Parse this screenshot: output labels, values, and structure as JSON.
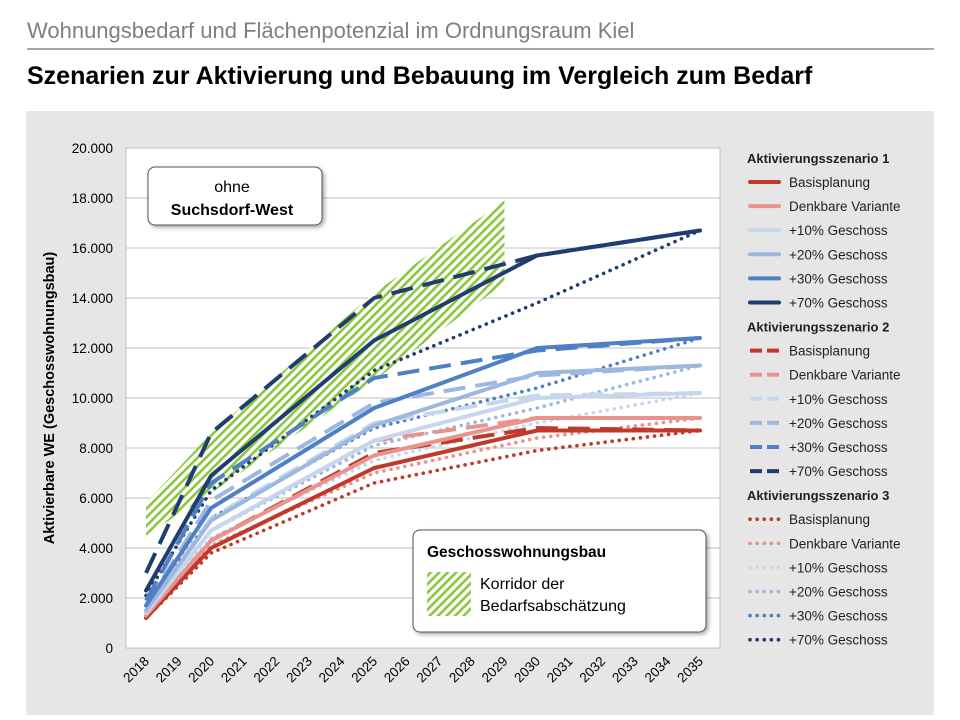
{
  "header": {
    "supertitle": "Wohnungsbedarf und Flächenpotenzial im Ordnungsraum Kiel",
    "title": "Szenarien zur Aktivierung und Bebauung im Vergleich zum Bedarf"
  },
  "annotations": {
    "box1_line1": "ohne",
    "box1_line2": "Suchsdorf-West",
    "box2_title": "Geschosswohnungsbau",
    "box2_item_line1": "Korridor der",
    "box2_item_line2": "Bedarfsabschätzung"
  },
  "colors": {
    "basis": "#c0392b",
    "denkbar": "#e8948d",
    "p10": "#c6d6ec",
    "p20": "#9cb8de",
    "p30": "#4f7fc4",
    "p70": "#1f3d6e",
    "corridor": "#8cc63f",
    "panel": "#e6e6e6"
  },
  "chart_data": {
    "type": "line",
    "ylabel": "Aktivierbare WE (Geschosswohnungsbau)",
    "xlabel": "",
    "ylim": [
      0,
      20000
    ],
    "yticks": [
      "0",
      "2.000",
      "4.000",
      "6.000",
      "8.000",
      "10.000",
      "12.000",
      "14.000",
      "16.000",
      "18.000",
      "20.000"
    ],
    "categories": [
      "2018",
      "2019",
      "2020",
      "2021",
      "2022",
      "2023",
      "2024",
      "2025",
      "2026",
      "2027",
      "2028",
      "2029",
      "2030",
      "2031",
      "2032",
      "2033",
      "2034",
      "2035"
    ],
    "grid": "horizontal",
    "legend_position": "right",
    "corridor": {
      "name": "Korridor der Bedarfsabschätzung",
      "x": [
        "2018",
        "2020",
        "2025",
        "2029"
      ],
      "lower": [
        4500,
        6200,
        10700,
        14600
      ],
      "upper": [
        5800,
        8600,
        14200,
        17900
      ]
    },
    "legend_groups": [
      {
        "title": "Aktivierungsszenario 1",
        "style": "solid"
      },
      {
        "title": "Aktivierungsszenario 2",
        "style": "dashed"
      },
      {
        "title": "Aktivierungsszenario 3",
        "style": "dotted"
      }
    ],
    "series": [
      {
        "name": "Basisplanung",
        "group": 0,
        "color": "basis",
        "x": [
          "2018",
          "2020",
          "2025",
          "2030",
          "2035"
        ],
        "values": [
          1200,
          4000,
          7200,
          8700,
          8700
        ]
      },
      {
        "name": "Denkbare Variante",
        "group": 0,
        "color": "denkbar",
        "x": [
          "2018",
          "2020",
          "2025",
          "2030",
          "2035"
        ],
        "values": [
          1300,
          4300,
          7700,
          9200,
          9200
        ]
      },
      {
        "name": "+10% Geschoss",
        "group": 0,
        "color": "p10",
        "x": [
          "2018",
          "2020",
          "2025",
          "2030",
          "2035"
        ],
        "values": [
          1400,
          4700,
          8300,
          10000,
          10200
        ]
      },
      {
        "name": "+20% Geschoss",
        "group": 0,
        "color": "p20",
        "x": [
          "2018",
          "2020",
          "2025",
          "2030",
          "2035"
        ],
        "values": [
          1500,
          5100,
          8900,
          11000,
          11300
        ]
      },
      {
        "name": "+30% Geschoss",
        "group": 0,
        "color": "p30",
        "x": [
          "2018",
          "2020",
          "2025",
          "2030",
          "2035"
        ],
        "values": [
          1700,
          5600,
          9600,
          12000,
          12400
        ]
      },
      {
        "name": "+70% Geschoss",
        "group": 0,
        "color": "p70",
        "x": [
          "2018",
          "2020",
          "2025",
          "2030",
          "2035"
        ],
        "values": [
          2300,
          6900,
          12300,
          15700,
          16700
        ]
      },
      {
        "name": "Basisplanung",
        "group": 1,
        "color": "basis",
        "x": [
          "2018",
          "2020",
          "2025",
          "2030",
          "2035"
        ],
        "values": [
          1300,
          4300,
          7800,
          8800,
          8700
        ]
      },
      {
        "name": "Denkbare Variante",
        "group": 1,
        "color": "denkbar",
        "x": [
          "2018",
          "2020",
          "2025",
          "2030",
          "2035"
        ],
        "values": [
          1400,
          4700,
          8300,
          9200,
          9200
        ]
      },
      {
        "name": "+10% Geschoss",
        "group": 1,
        "color": "p10",
        "x": [
          "2018",
          "2020",
          "2025",
          "2030",
          "2035"
        ],
        "values": [
          1500,
          5200,
          9000,
          10100,
          10200
        ]
      },
      {
        "name": "+20% Geschoss",
        "group": 1,
        "color": "p20",
        "x": [
          "2018",
          "2020",
          "2025",
          "2030",
          "2035"
        ],
        "values": [
          1700,
          5900,
          9800,
          10900,
          11300
        ]
      },
      {
        "name": "+30% Geschoss",
        "group": 1,
        "color": "p30",
        "x": [
          "2018",
          "2020",
          "2025",
          "2030",
          "2035"
        ],
        "values": [
          1900,
          6600,
          10800,
          11900,
          12400
        ]
      },
      {
        "name": "+70% Geschoss",
        "group": 1,
        "color": "p70",
        "x": [
          "2018",
          "2020",
          "2025",
          "2030",
          "2035"
        ],
        "values": [
          3000,
          8600,
          14000,
          15700,
          16700
        ]
      },
      {
        "name": "Basisplanung",
        "group": 2,
        "color": "basis",
        "x": [
          "2018",
          "2020",
          "2025",
          "2030",
          "2035"
        ],
        "values": [
          1200,
          3800,
          6600,
          7900,
          8700
        ]
      },
      {
        "name": "Denkbare Variante",
        "group": 2,
        "color": "denkbar",
        "x": [
          "2018",
          "2020",
          "2025",
          "2030",
          "2035"
        ],
        "values": [
          1300,
          4100,
          7000,
          8400,
          9200
        ]
      },
      {
        "name": "+10% Geschoss",
        "group": 2,
        "color": "p10",
        "x": [
          "2018",
          "2020",
          "2025",
          "2030",
          "2035"
        ],
        "values": [
          1400,
          4400,
          7500,
          9000,
          10200
        ]
      },
      {
        "name": "+20% Geschoss",
        "group": 2,
        "color": "p20",
        "x": [
          "2018",
          "2020",
          "2025",
          "2030",
          "2035"
        ],
        "values": [
          1500,
          4700,
          8100,
          9600,
          11300
        ]
      },
      {
        "name": "+30% Geschoss",
        "group": 2,
        "color": "p30",
        "x": [
          "2018",
          "2020",
          "2025",
          "2030",
          "2035"
        ],
        "values": [
          1700,
          5200,
          8800,
          10400,
          12400
        ]
      },
      {
        "name": "+70% Geschoss",
        "group": 2,
        "color": "p70",
        "x": [
          "2018",
          "2020",
          "2025",
          "2030",
          "2035"
        ],
        "values": [
          2100,
          6300,
          11100,
          13800,
          16700
        ]
      }
    ]
  }
}
